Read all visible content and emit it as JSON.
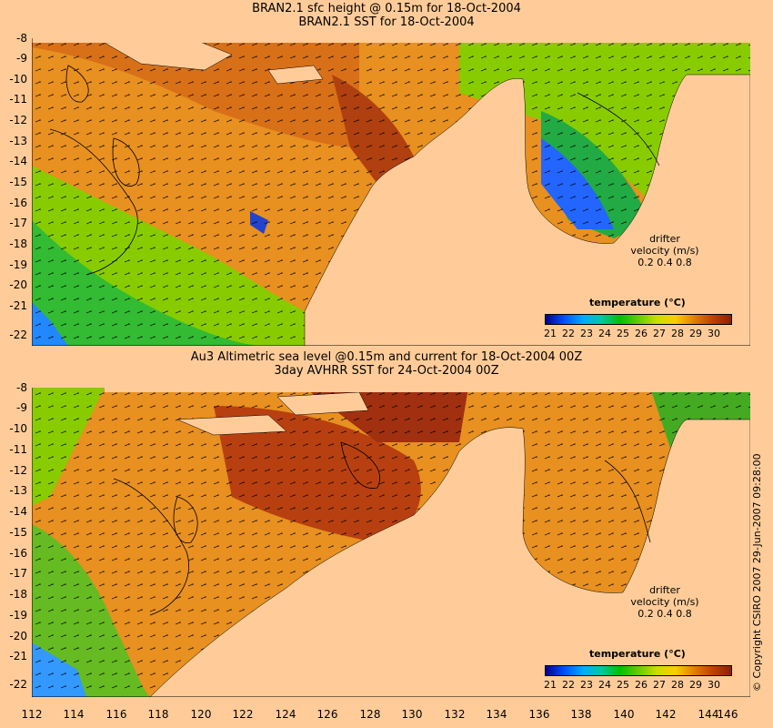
{
  "panels": [
    {
      "title_line1": "BRAN2.1 sfc height @ 0.15m for 18-Oct-2004",
      "title_line2": "BRAN2.1 SST for 18-Oct-2004",
      "legend_title": "temperature (°C)",
      "legend_ticks": [
        "21",
        "22",
        "23",
        "24",
        "25",
        "26",
        "27",
        "28",
        "29",
        "30"
      ],
      "drifter": {
        "label1": "drifter",
        "label2": "velocity (m/s)",
        "scale": "0.2  0.4  0.8"
      }
    },
    {
      "title_line1": "Au3 Altimetric sea level  @0.15m and current for 18-Oct-2004 00Z",
      "title_line2": "3day AVHRR SST for 24-Oct-2004 00Z",
      "legend_title": "temperature (°C)",
      "legend_ticks": [
        "21",
        "22",
        "23",
        "24",
        "25",
        "26",
        "27",
        "28",
        "29",
        "30"
      ],
      "drifter": {
        "label1": "drifter",
        "label2": "velocity (m/s)",
        "scale": "0.2  0.4  0.8"
      }
    }
  ],
  "lat_ticks": [
    "-8",
    "-9",
    "-10",
    "-11",
    "-12",
    "-13",
    "-14",
    "-15",
    "-16",
    "-17",
    "-18",
    "-19",
    "-20",
    "-21",
    "-22"
  ],
  "lon_ticks": [
    "112",
    "114",
    "116",
    "118",
    "120",
    "122",
    "124",
    "126",
    "128",
    "130",
    "132",
    "134",
    "136",
    "138",
    "140",
    "142",
    "144",
    "146"
  ],
  "copyright": "© Copyright CSIRO 2007   29-Jun-2007 09:28:00",
  "colors": {
    "land": "#ffcc99",
    "colormap": [
      "#00008b",
      "#0050ff",
      "#00aaff",
      "#00c8a0",
      "#00c000",
      "#66cc00",
      "#ccdd00",
      "#ffcc00",
      "#e08000",
      "#c04000",
      "#8b2000"
    ]
  }
}
